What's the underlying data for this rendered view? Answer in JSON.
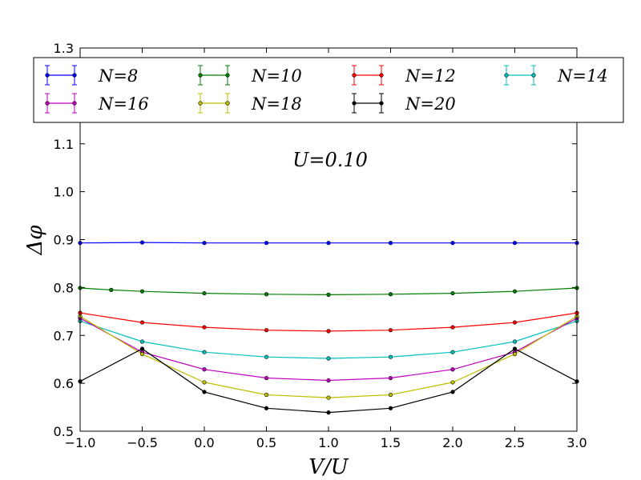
{
  "chart_data": {
    "type": "line",
    "xlabel": "V/U",
    "ylabel": "Δφ",
    "xlim": [
      -1.0,
      3.0
    ],
    "ylim": [
      0.5,
      1.3
    ],
    "xticks": [
      "−1.0",
      "−0.5",
      "0.0",
      "0.5",
      "1.0",
      "1.5",
      "2.0",
      "2.5",
      "3.0"
    ],
    "yticks": [
      "0.5",
      "0.6",
      "0.7",
      "0.8",
      "0.9",
      "1.0",
      "1.1",
      "1.2",
      "1.3"
    ],
    "annotation": "U=0.10",
    "legend_position": "top",
    "series": [
      {
        "name": "N=8",
        "color": "#0000ff",
        "x": [
          -1.0,
          -0.5,
          0.0,
          0.5,
          1.0,
          1.5,
          2.0,
          2.5,
          3.0
        ],
        "y": [
          0.893,
          0.894,
          0.893,
          0.893,
          0.893,
          0.893,
          0.893,
          0.893,
          0.893
        ]
      },
      {
        "name": "N=10",
        "color": "#008000",
        "x": [
          -1.0,
          -0.75,
          -0.5,
          0.0,
          0.5,
          1.0,
          1.5,
          2.0,
          2.5,
          3.0
        ],
        "y": [
          0.799,
          0.795,
          0.792,
          0.788,
          0.786,
          0.785,
          0.786,
          0.788,
          0.792,
          0.799
        ]
      },
      {
        "name": "N=12",
        "color": "#ff0000",
        "x": [
          -1.0,
          -0.5,
          0.0,
          0.5,
          1.0,
          1.5,
          2.0,
          2.5,
          3.0
        ],
        "y": [
          0.747,
          0.727,
          0.717,
          0.711,
          0.709,
          0.711,
          0.717,
          0.727,
          0.747
        ]
      },
      {
        "name": "N=14",
        "color": "#00bfbf",
        "x": [
          -1.0,
          -0.5,
          0.0,
          0.5,
          1.0,
          1.5,
          2.0,
          2.5,
          3.0
        ],
        "y": [
          0.73,
          0.687,
          0.665,
          0.655,
          0.652,
          0.655,
          0.665,
          0.687,
          0.73
        ]
      },
      {
        "name": "N=16",
        "color": "#bf00bf",
        "x": [
          -1.0,
          -0.5,
          0.0,
          0.5,
          1.0,
          1.5,
          2.0,
          2.5,
          3.0
        ],
        "y": [
          0.736,
          0.665,
          0.629,
          0.611,
          0.606,
          0.611,
          0.629,
          0.665,
          0.736
        ]
      },
      {
        "name": "N=18",
        "color": "#bfbf00",
        "x": [
          -1.0,
          -0.5,
          0.0,
          0.5,
          1.0,
          1.5,
          2.0,
          2.5,
          3.0
        ],
        "y": [
          0.74,
          0.661,
          0.602,
          0.576,
          0.57,
          0.576,
          0.602,
          0.661,
          0.74
        ]
      },
      {
        "name": "N=20",
        "color": "#000000",
        "x": [
          -1.0,
          -0.5,
          0.0,
          0.5,
          1.0,
          1.5,
          2.0,
          2.5,
          3.0
        ],
        "y": [
          0.604,
          0.672,
          0.582,
          0.548,
          0.539,
          0.548,
          0.582,
          0.672,
          0.604
        ]
      }
    ]
  }
}
